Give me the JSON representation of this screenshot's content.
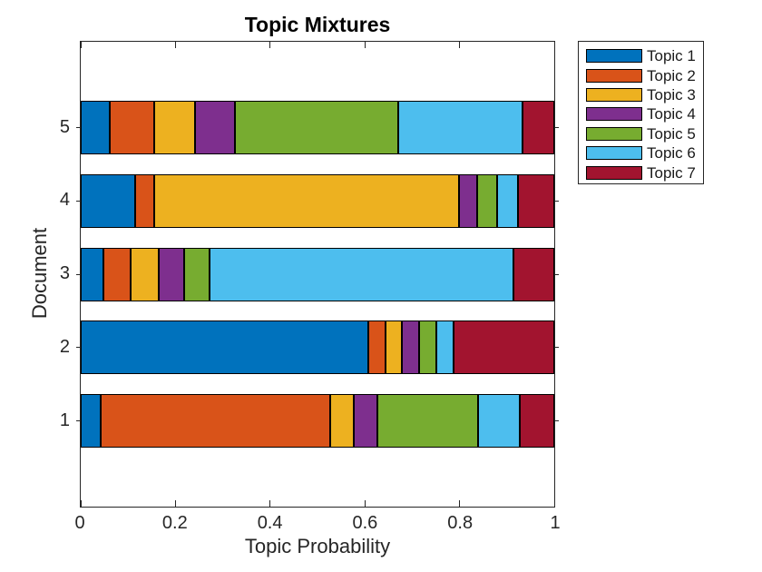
{
  "chart_data": {
    "type": "bar",
    "variant": "stacked-horizontal",
    "title": "Topic Mixtures",
    "xlabel": "Topic Probability",
    "ylabel": "Document",
    "xlim": [
      0,
      1
    ],
    "xticks": [
      0,
      0.2,
      0.4,
      0.6,
      0.8,
      1
    ],
    "xtick_labels": [
      "0",
      "0.2",
      "0.4",
      "0.6",
      "0.8",
      "1"
    ],
    "categories": [
      "1",
      "2",
      "3",
      "4",
      "5"
    ],
    "category_order_top_to_bottom": [
      "5",
      "4",
      "3",
      "2",
      "1"
    ],
    "grid": false,
    "bar_edge_color": "#000000",
    "axis_color": "#262626",
    "legend": {
      "position": "outside-top-right",
      "labels": [
        "Topic 1",
        "Topic 2",
        "Topic 3",
        "Topic 4",
        "Topic 5",
        "Topic 6",
        "Topic 7"
      ]
    },
    "series": [
      {
        "name": "Topic 1",
        "color": "#0072BD",
        "values": [
          0.042,
          0.607,
          0.048,
          0.115,
          0.061
        ]
      },
      {
        "name": "Topic 2",
        "color": "#D95319",
        "values": [
          0.485,
          0.036,
          0.057,
          0.04,
          0.095
        ]
      },
      {
        "name": "Topic 3",
        "color": "#EDB120",
        "values": [
          0.05,
          0.036,
          0.059,
          0.643,
          0.086
        ]
      },
      {
        "name": "Topic 4",
        "color": "#7E2F8E",
        "values": [
          0.05,
          0.036,
          0.055,
          0.04,
          0.084
        ]
      },
      {
        "name": "Topic 5",
        "color": "#77AC30",
        "values": [
          0.212,
          0.036,
          0.053,
          0.042,
          0.344
        ]
      },
      {
        "name": "Topic 6",
        "color": "#4DBEEE",
        "values": [
          0.088,
          0.037,
          0.642,
          0.044,
          0.263
        ]
      },
      {
        "name": "Topic 7",
        "color": "#A2142F",
        "values": [
          0.073,
          0.212,
          0.086,
          0.076,
          0.067
        ]
      }
    ]
  }
}
